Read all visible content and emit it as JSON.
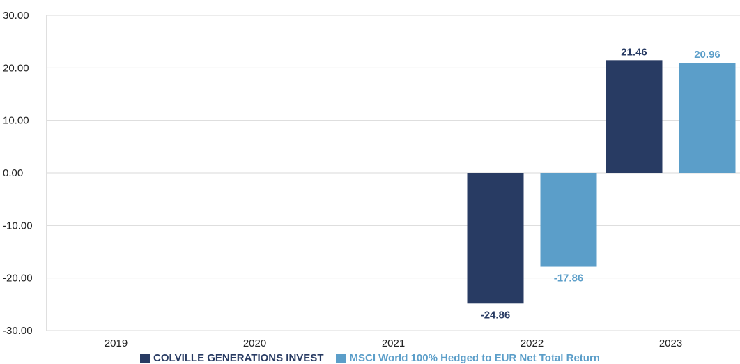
{
  "chart_data": {
    "type": "bar",
    "categories": [
      "2019",
      "2020",
      "2021",
      "2022",
      "2023"
    ],
    "series": [
      {
        "name": "COLVILLE GENERATIONS INVEST",
        "color": "#283b63",
        "values": [
          null,
          null,
          null,
          -24.86,
          21.46
        ],
        "labels": [
          "",
          "",
          "",
          "-24.86",
          "21.46"
        ]
      },
      {
        "name": "MSCI World 100% Hedged to EUR Net Total Return",
        "color": "#5b9ec9",
        "values": [
          null,
          null,
          null,
          -17.86,
          20.96
        ],
        "labels": [
          "",
          "",
          "",
          "-17.86",
          "20.96"
        ]
      }
    ],
    "ylim": [
      -30,
      30
    ],
    "yticks": [
      "-30.00",
      "-20.00",
      "-10.00",
      "0.00",
      "10.00",
      "20.00",
      "30.00"
    ],
    "grid": true,
    "legend_position": "bottom"
  }
}
